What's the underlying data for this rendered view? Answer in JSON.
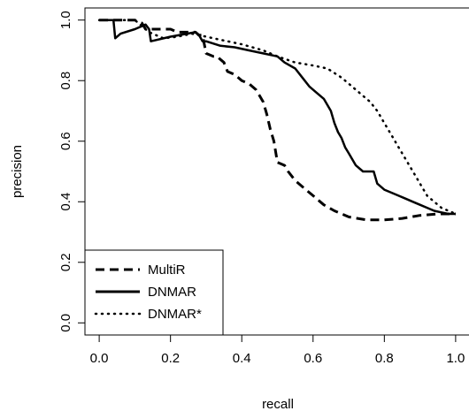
{
  "chart_data": {
    "type": "line",
    "xlabel": "recall",
    "ylabel": "precision",
    "xlim": [
      -0.04,
      1.04
    ],
    "ylim": [
      -0.04,
      1.04
    ],
    "xticks": [
      0.0,
      0.2,
      0.4,
      0.6,
      0.8,
      1.0
    ],
    "xtick_labels": [
      "0.0",
      "0.2",
      "0.4",
      "0.6",
      "0.8",
      "1.0"
    ],
    "yticks": [
      0.0,
      0.2,
      0.4,
      0.6,
      0.8,
      1.0
    ],
    "ytick_labels": [
      "0.0",
      "0.2",
      "0.4",
      "0.6",
      "0.8",
      "1.0"
    ],
    "grid": false,
    "legend": "bottom-left",
    "series": [
      {
        "name": "MultiR",
        "style": "dashed",
        "x": [
          0.0,
          0.1,
          0.12,
          0.13,
          0.14,
          0.2,
          0.22,
          0.27,
          0.28,
          0.29,
          0.3,
          0.32,
          0.33,
          0.35,
          0.36,
          0.38,
          0.4,
          0.42,
          0.44,
          0.45,
          0.46,
          0.47,
          0.48,
          0.49,
          0.5,
          0.52,
          0.53,
          0.55,
          0.58,
          0.6,
          0.63,
          0.66,
          0.7,
          0.75,
          0.8,
          0.85,
          0.9,
          0.95,
          1.0
        ],
        "y": [
          1.0,
          1.0,
          0.99,
          0.97,
          0.97,
          0.97,
          0.96,
          0.96,
          0.95,
          0.95,
          0.89,
          0.88,
          0.88,
          0.86,
          0.83,
          0.82,
          0.8,
          0.79,
          0.77,
          0.75,
          0.73,
          0.69,
          0.64,
          0.6,
          0.53,
          0.52,
          0.5,
          0.47,
          0.44,
          0.42,
          0.39,
          0.37,
          0.35,
          0.34,
          0.34,
          0.345,
          0.355,
          0.36,
          0.36
        ]
      },
      {
        "name": "DNMAR",
        "style": "solid",
        "x": [
          0.0,
          0.04,
          0.045,
          0.06,
          0.1,
          0.13,
          0.14,
          0.145,
          0.2,
          0.27,
          0.28,
          0.29,
          0.3,
          0.34,
          0.38,
          0.42,
          0.46,
          0.5,
          0.52,
          0.55,
          0.57,
          0.59,
          0.61,
          0.63,
          0.65,
          0.66,
          0.67,
          0.68,
          0.69,
          0.7,
          0.71,
          0.72,
          0.74,
          0.77,
          0.78,
          0.8,
          0.82,
          0.84,
          0.86,
          0.88,
          0.9,
          0.92,
          0.94,
          0.96,
          0.98,
          1.0
        ],
        "y": [
          1.0,
          1.0,
          0.94,
          0.955,
          0.97,
          0.985,
          0.97,
          0.93,
          0.945,
          0.96,
          0.95,
          0.93,
          0.93,
          0.915,
          0.91,
          0.9,
          0.89,
          0.88,
          0.86,
          0.84,
          0.81,
          0.78,
          0.76,
          0.74,
          0.7,
          0.66,
          0.63,
          0.61,
          0.58,
          0.56,
          0.54,
          0.52,
          0.5,
          0.5,
          0.46,
          0.44,
          0.43,
          0.42,
          0.41,
          0.4,
          0.39,
          0.38,
          0.37,
          0.365,
          0.36,
          0.36
        ]
      },
      {
        "name": "DNMAR*",
        "style": "dotted",
        "x": [
          0.0,
          0.1,
          0.12,
          0.14,
          0.18,
          0.22,
          0.26,
          0.3,
          0.34,
          0.4,
          0.46,
          0.5,
          0.55,
          0.6,
          0.64,
          0.68,
          0.72,
          0.76,
          0.78,
          0.8,
          0.82,
          0.84,
          0.86,
          0.88,
          0.9,
          0.92,
          0.94,
          0.96,
          0.98,
          1.0
        ],
        "y": [
          1.0,
          1.0,
          0.98,
          0.96,
          0.94,
          0.945,
          0.955,
          0.945,
          0.935,
          0.92,
          0.9,
          0.88,
          0.86,
          0.85,
          0.84,
          0.81,
          0.77,
          0.73,
          0.7,
          0.66,
          0.62,
          0.58,
          0.54,
          0.5,
          0.46,
          0.42,
          0.4,
          0.38,
          0.37,
          0.36
        ]
      }
    ]
  }
}
